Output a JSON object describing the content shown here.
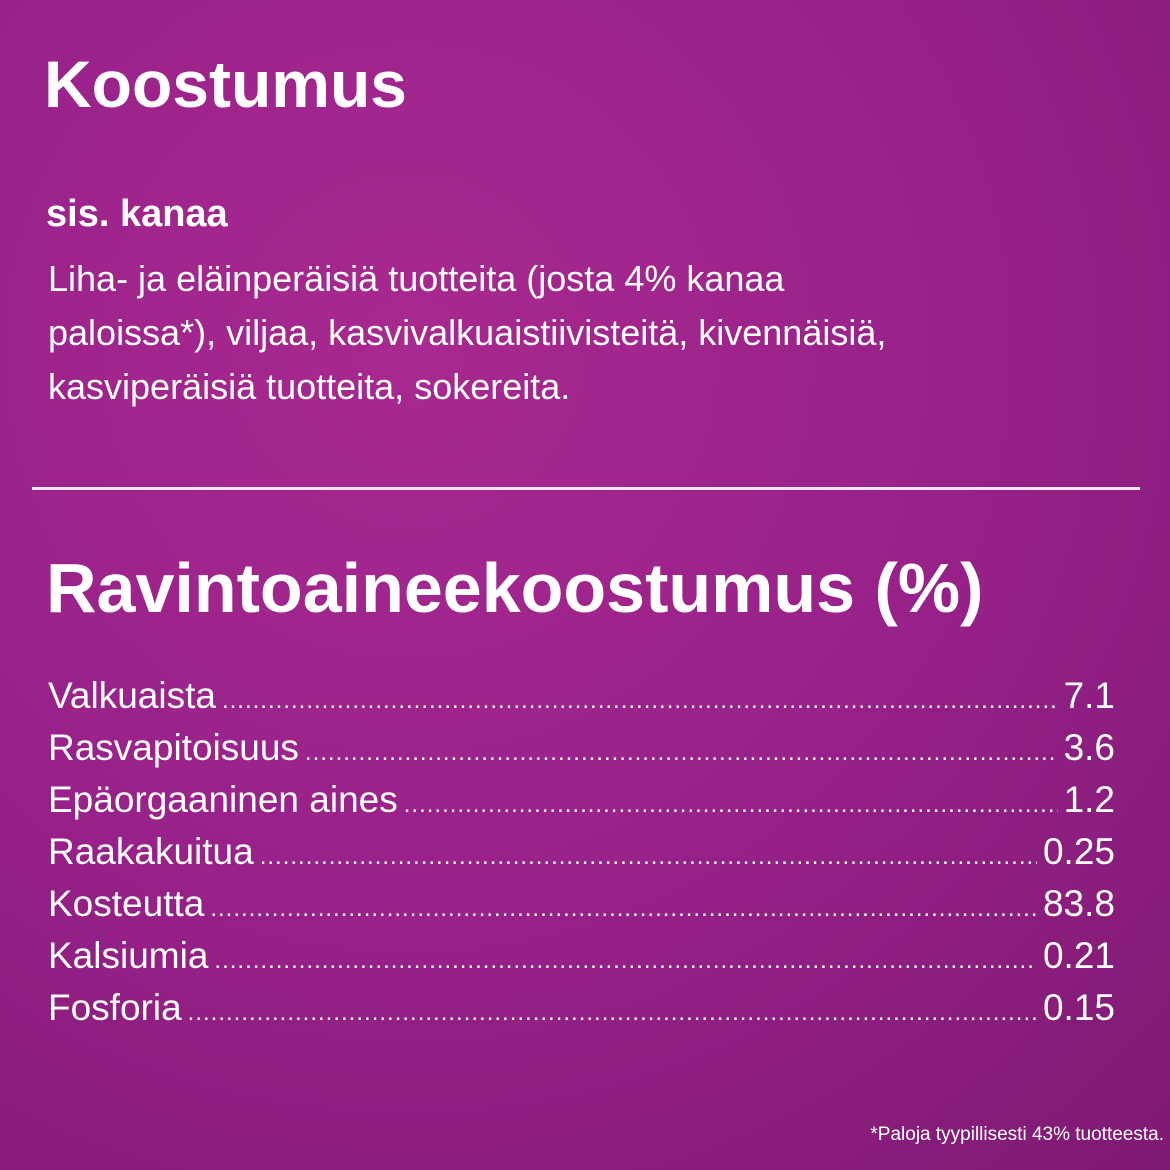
{
  "composition": {
    "title": "Koostumus",
    "subtitle": "sis. kanaa",
    "lines": [
      "Liha- ja eläinperäisiä tuotteita (josta 4% kanaa",
      "paloissa*), viljaa, kasvivalkuaistiivisteitä, kivennäisiä,",
      "kasviperäisiä tuotteita, sokereita."
    ]
  },
  "nutrition": {
    "title": "Ravintoaineekoostumus (%)",
    "rows": [
      [
        "Valkuaista",
        7.1
      ],
      [
        "Rasvapitoisuus",
        3.6
      ],
      [
        "Epäorgaaninen aines",
        1.2
      ],
      [
        "Raakakuitua",
        0.25
      ],
      [
        "Kosteutta",
        83.8
      ],
      [
        "Kalsiumia",
        0.21
      ],
      [
        "Fosforia",
        0.15
      ]
    ]
  },
  "footnote": "*Paloja tyypillisesti 43% tuotteesta."
}
